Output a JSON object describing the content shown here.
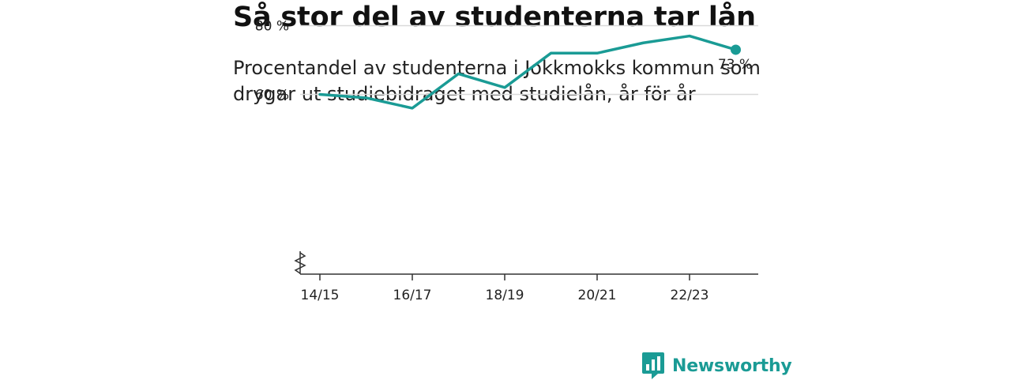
{
  "title": "Så stor del av studenterna tar lån",
  "subtitle": "Procentandel av studenterna i Jokkmokks kommun som drygar ut studiebidraget med studielån, år för år",
  "brand": {
    "name": "Newsworthy",
    "color": "#1a9b95",
    "icon": "bar-chart-speech-icon"
  },
  "chart_data": {
    "type": "line",
    "x": [
      "14/15",
      "15/16",
      "16/17",
      "17/18",
      "18/19",
      "19/20",
      "20/21",
      "21/22",
      "22/23",
      "23/24"
    ],
    "x_tick_labels": [
      "14/15",
      "16/17",
      "18/19",
      "20/21",
      "22/23"
    ],
    "series": [
      {
        "values": [
          60,
          59,
          56,
          66,
          62,
          72,
          72,
          75,
          77,
          73
        ],
        "color": "#1a9b95"
      }
    ],
    "y_ticks": [
      60,
      80
    ],
    "y_tick_labels": [
      "60 %",
      "80 %"
    ],
    "ylim": [
      48,
      83
    ],
    "axis_break": true,
    "grid": true,
    "end_label": "73 %"
  }
}
